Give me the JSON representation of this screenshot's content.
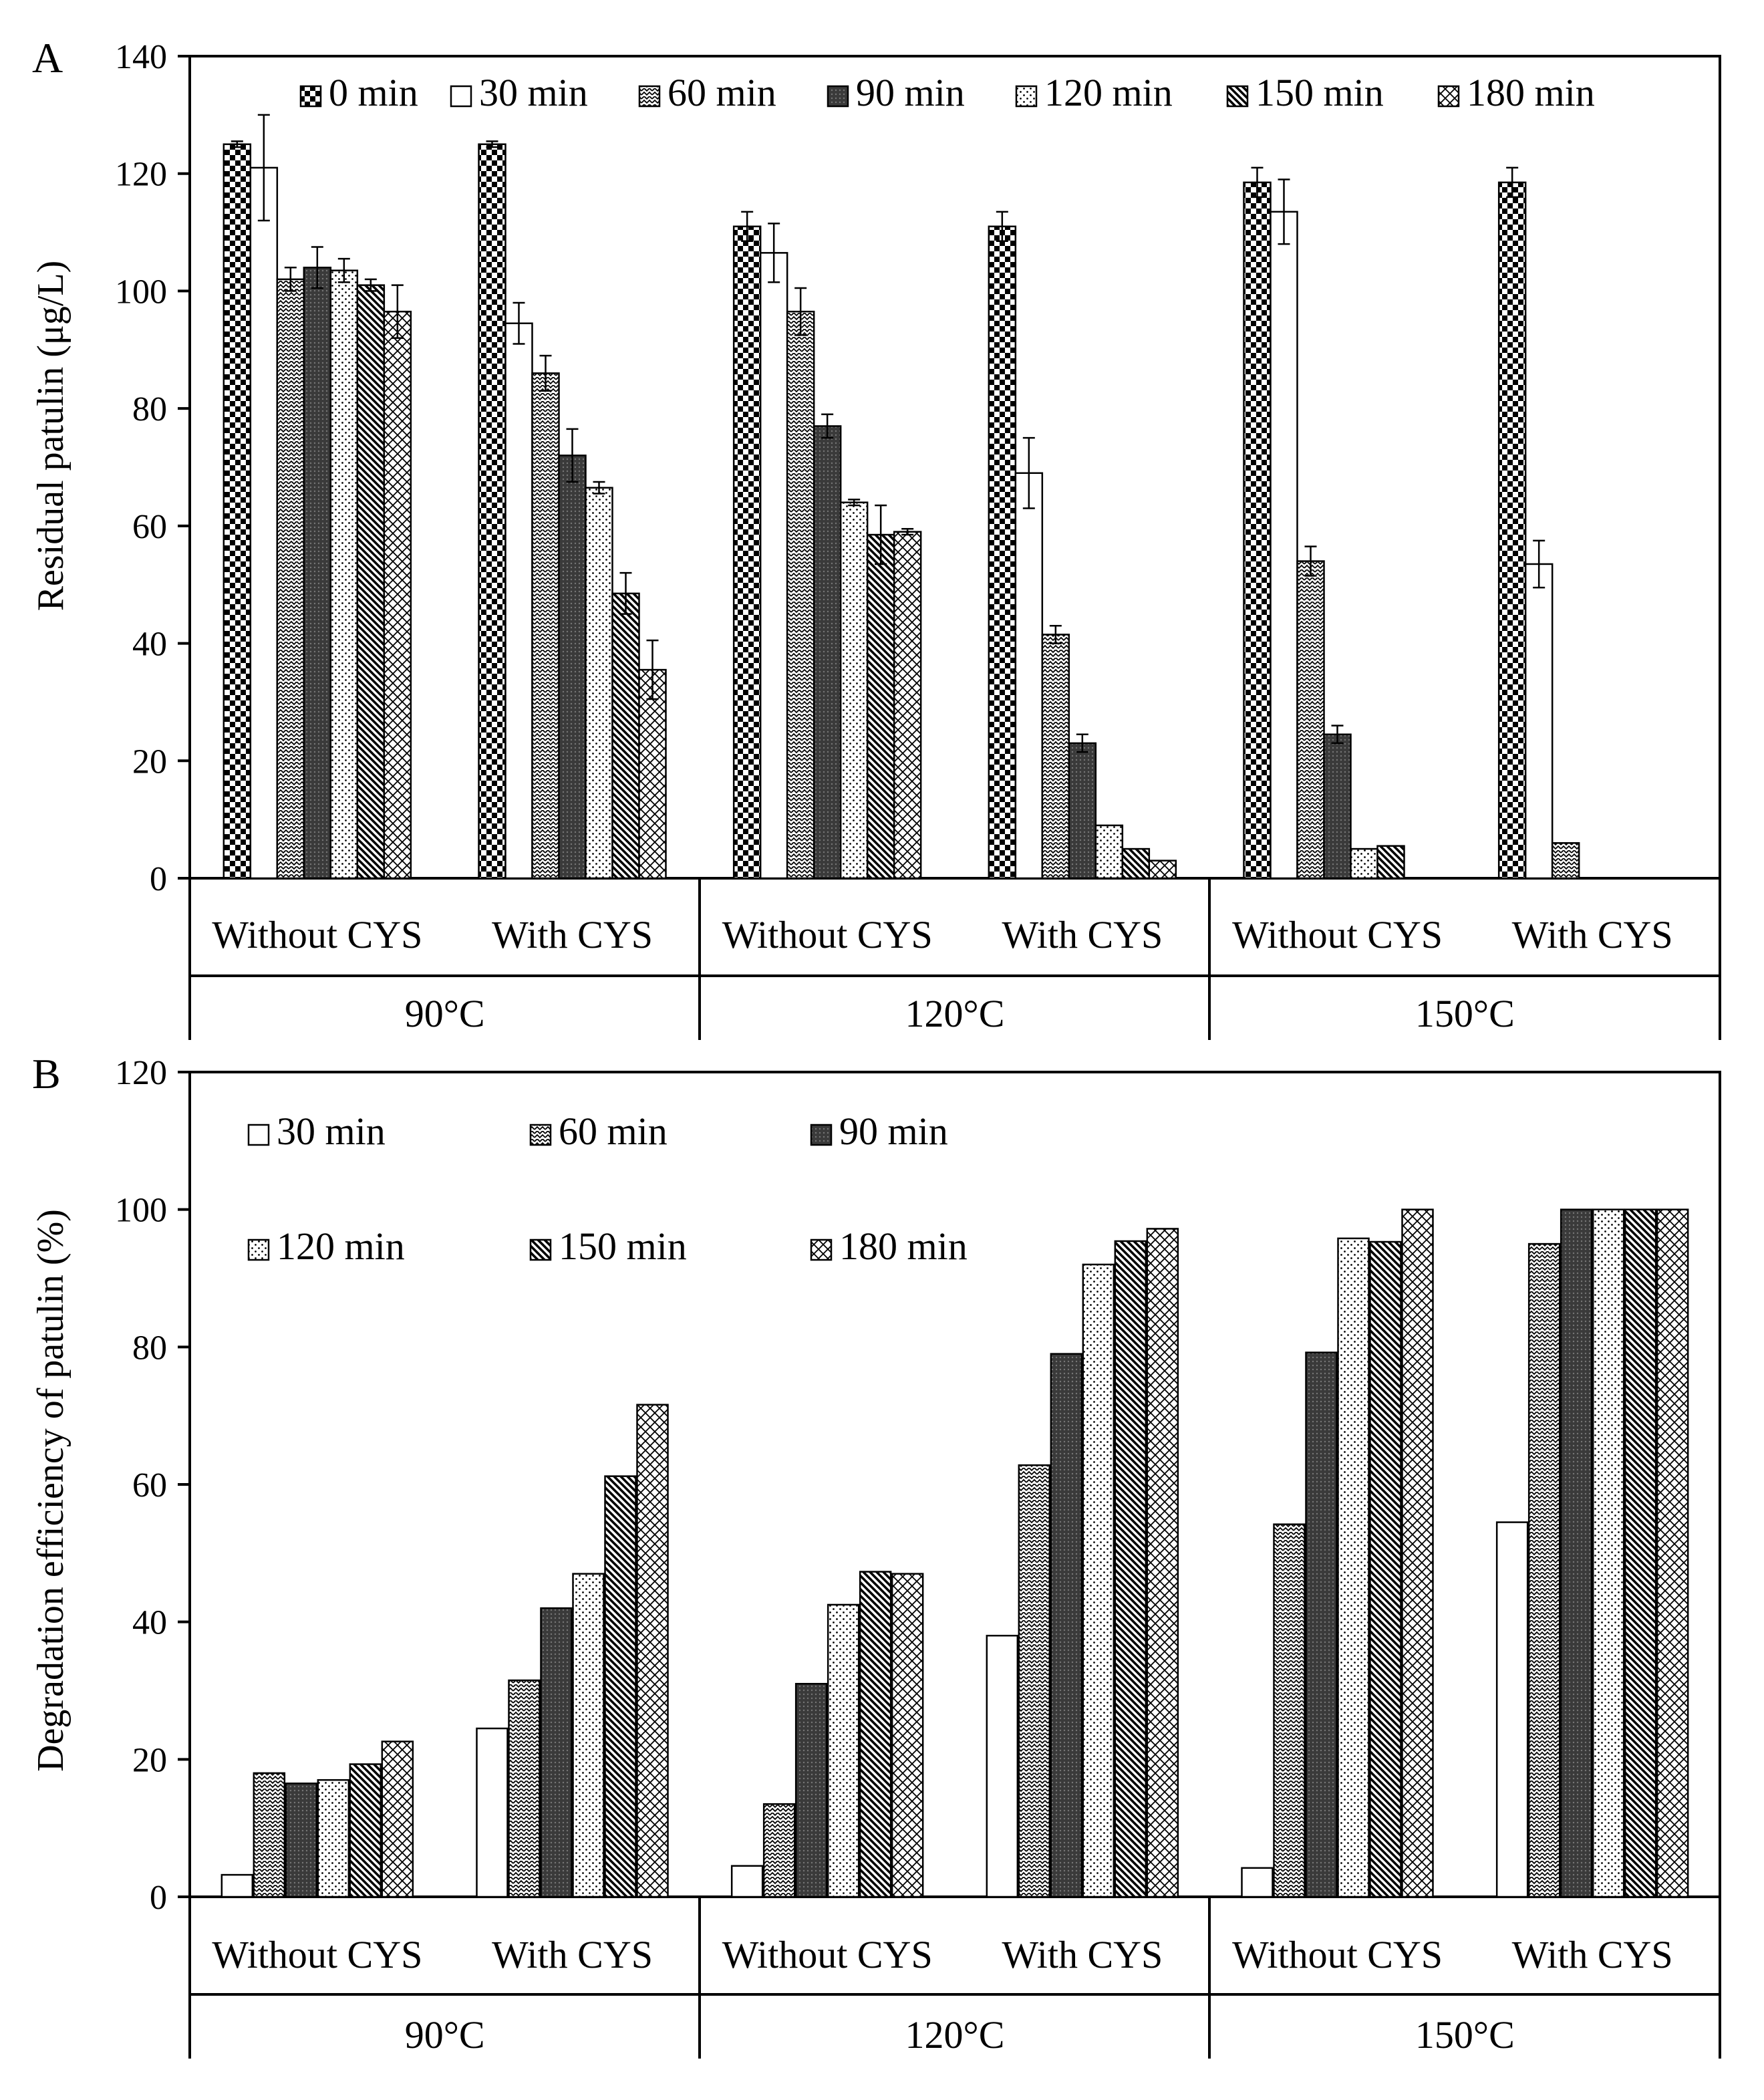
{
  "chart_data": [
    {
      "type": "bar",
      "panel": "A",
      "ylabel": "Residual patulin (μg/L)",
      "ylim": [
        0,
        140
      ],
      "yticks": [
        0,
        20,
        40,
        60,
        80,
        100,
        120,
        140
      ],
      "groups": [
        "90°C",
        "120°C",
        "150°C"
      ],
      "categories": [
        "Without CYS",
        "With CYS",
        "Without CYS",
        "With CYS",
        "Without CYS",
        "With CYS"
      ],
      "grid": false,
      "legend_position": "top",
      "series": [
        {
          "name": "0 min",
          "pattern": "checker",
          "values": [
            125,
            125,
            111,
            111,
            118.5,
            118.5
          ],
          "errors": [
            0.5,
            0.5,
            2.5,
            2.5,
            2.5,
            2.5
          ]
        },
        {
          "name": "30 min",
          "pattern": "white",
          "values": [
            121,
            94.5,
            106.5,
            69,
            113.5,
            53.5
          ],
          "errors": [
            9,
            3.5,
            5,
            6,
            5.5,
            4
          ]
        },
        {
          "name": "60 min",
          "pattern": "zigzag",
          "values": [
            102,
            86,
            96.5,
            41.5,
            54,
            6
          ],
          "errors": [
            2,
            3,
            4,
            1.5,
            2.5,
            0
          ]
        },
        {
          "name": "90 min",
          "pattern": "dark",
          "values": [
            104,
            72,
            77,
            23,
            24.5,
            null
          ],
          "errors": [
            3.5,
            4.5,
            2,
            1.5,
            1.5,
            null
          ]
        },
        {
          "name": "120 min",
          "pattern": "dots",
          "values": [
            103.5,
            66.5,
            64,
            9,
            5,
            null
          ],
          "errors": [
            2,
            1,
            0.5,
            0,
            0,
            null
          ]
        },
        {
          "name": "150 min",
          "pattern": "diag",
          "values": [
            101,
            48.5,
            58.5,
            5,
            5.5,
            null
          ],
          "errors": [
            1,
            3.5,
            5,
            0,
            0,
            null
          ]
        },
        {
          "name": "180 min",
          "pattern": "cross",
          "values": [
            96.5,
            35.5,
            59,
            3,
            null,
            null
          ],
          "errors": [
            4.5,
            5,
            0.5,
            0,
            null,
            null
          ]
        }
      ]
    },
    {
      "type": "bar",
      "panel": "B",
      "ylabel": "Degradation efficiency of patulin (%)",
      "ylim": [
        0,
        120
      ],
      "yticks": [
        0,
        20,
        40,
        60,
        80,
        100,
        120
      ],
      "groups": [
        "90°C",
        "120°C",
        "150°C"
      ],
      "categories": [
        "Without CYS",
        "With CYS",
        "Without CYS",
        "With CYS",
        "Without CYS",
        "With CYS"
      ],
      "grid": false,
      "legend_position": "top-left",
      "series": [
        {
          "name": "30 min",
          "pattern": "white",
          "values": [
            3.2,
            24.5,
            4.5,
            38,
            4.2,
            54.5
          ]
        },
        {
          "name": "60 min",
          "pattern": "zigzag",
          "values": [
            18,
            31.5,
            13.5,
            62.8,
            54.2,
            95
          ]
        },
        {
          "name": "90 min",
          "pattern": "dark",
          "values": [
            16.5,
            42,
            31,
            79,
            79.2,
            100
          ]
        },
        {
          "name": "120 min",
          "pattern": "dots",
          "values": [
            17,
            47,
            42.5,
            92,
            95.8,
            100
          ]
        },
        {
          "name": "150 min",
          "pattern": "diag",
          "values": [
            19.3,
            61.2,
            47.3,
            95.4,
            95.3,
            100
          ]
        },
        {
          "name": "180 min",
          "pattern": "cross",
          "values": [
            22.6,
            71.6,
            47,
            97.2,
            100,
            100
          ]
        }
      ]
    }
  ]
}
